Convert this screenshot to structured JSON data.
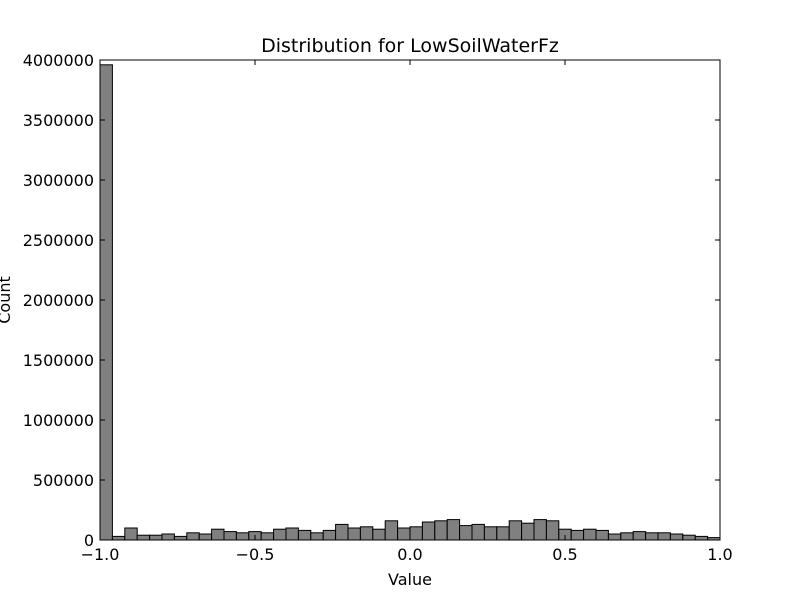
{
  "chart_data": {
    "type": "bar",
    "title": "Distribution for LowSoilWaterFz",
    "xlabel": "Value",
    "ylabel": "Count",
    "xlim": [
      -1.0,
      1.0
    ],
    "ylim": [
      0,
      4000000
    ],
    "grid": false,
    "bar_color": "#808080",
    "edge_color": "#000000",
    "bin_edges_start": -1.0,
    "bin_width": 0.04,
    "counts": [
      3960000,
      30000,
      100000,
      40000,
      40000,
      50000,
      30000,
      60000,
      50000,
      90000,
      70000,
      60000,
      70000,
      60000,
      90000,
      100000,
      80000,
      60000,
      80000,
      130000,
      100000,
      110000,
      90000,
      160000,
      100000,
      110000,
      150000,
      160000,
      170000,
      120000,
      130000,
      110000,
      110000,
      160000,
      140000,
      170000,
      160000,
      90000,
      80000,
      90000,
      80000,
      50000,
      60000,
      70000,
      60000,
      60000,
      50000,
      40000,
      30000,
      20000
    ],
    "x_ticks": [
      {
        "value": -1.0,
        "label": "−1.0"
      },
      {
        "value": -0.5,
        "label": "−0.5"
      },
      {
        "value": 0.0,
        "label": "0.0"
      },
      {
        "value": 0.5,
        "label": "0.5"
      },
      {
        "value": 1.0,
        "label": "1.0"
      }
    ],
    "y_ticks": [
      {
        "value": 0,
        "label": "0"
      },
      {
        "value": 500000,
        "label": "500000"
      },
      {
        "value": 1000000,
        "label": "1000000"
      },
      {
        "value": 1500000,
        "label": "1500000"
      },
      {
        "value": 2000000,
        "label": "2000000"
      },
      {
        "value": 2500000,
        "label": "2500000"
      },
      {
        "value": 3000000,
        "label": "3000000"
      },
      {
        "value": 3500000,
        "label": "3500000"
      },
      {
        "value": 4000000,
        "label": "4000000"
      }
    ]
  }
}
